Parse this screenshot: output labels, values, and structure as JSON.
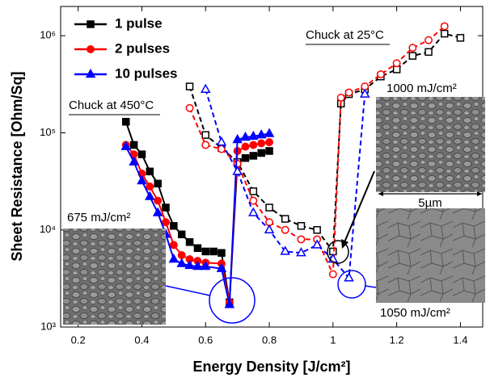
{
  "chart_data": {
    "type": "line",
    "x_label": "Energy Density [J/cm²]",
    "y_label": "Sheet Resistance [Ohm/Sq]",
    "log_y": true,
    "xlim": [
      0.145,
      1.47
    ],
    "ylim": [
      1000,
      2000000
    ],
    "xticks": [
      0.2,
      0.4,
      0.6,
      0.8,
      1.0,
      1.2,
      1.4
    ],
    "yticks": [
      {
        "value": 1000,
        "label": "10³"
      },
      {
        "value": 10000,
        "label": "10⁴"
      },
      {
        "value": 100000,
        "label": "10⁵"
      },
      {
        "value": 1000000,
        "label": "10⁶"
      }
    ],
    "legend": "top-left",
    "annotations": [
      "Chuck at 450°C",
      "Chuck at 25°C",
      "675 mJ/cm²",
      "1000 mJ/cm²",
      "1050 mJ/cm²",
      "5µm"
    ],
    "series": [
      {
        "name": "1 pulse",
        "color": "#000000",
        "marker": "square",
        "segments": [
          {
            "filled": true,
            "x": [
              0.35,
              0.375,
              0.4,
              0.425,
              0.45,
              0.475,
              0.5,
              0.525,
              0.55,
              0.575,
              0.6,
              0.625,
              0.65,
              0.675,
              0.7,
              0.725,
              0.75,
              0.775,
              0.8
            ],
            "values": [
              130000,
              75000,
              60000,
              40000,
              30000,
              17000,
              11000,
              9000,
              7500,
              6500,
              6000,
              6000,
              5800,
              1800,
              50000,
              55000,
              58000,
              62000,
              65000
            ]
          },
          {
            "filled": false,
            "x": [
              0.55,
              0.6,
              0.65,
              0.7,
              0.75,
              0.8,
              0.85,
              0.9,
              0.95,
              1.0,
              1.025,
              1.05,
              1.1,
              1.15,
              1.2,
              1.25,
              1.3,
              1.35,
              1.4
            ],
            "values": [
              300000,
              95000,
              70000,
              50000,
              25000,
              17000,
              13000,
              11000,
              10000,
              6000,
              200000,
              250000,
              280000,
              380000,
              450000,
              620000,
              680000,
              1050000,
              950000
            ]
          }
        ]
      },
      {
        "name": "2 pulses",
        "color": "#ff0000",
        "marker": "circle",
        "segments": [
          {
            "filled": true,
            "x": [
              0.35,
              0.375,
              0.4,
              0.425,
              0.45,
              0.475,
              0.5,
              0.525,
              0.55,
              0.575,
              0.6,
              0.65,
              0.675,
              0.7,
              0.725,
              0.75,
              0.775,
              0.8
            ],
            "values": [
              75000,
              60000,
              38000,
              28000,
              20000,
              12000,
              7000,
              5500,
              5000,
              4800,
              4600,
              4500,
              1800,
              65000,
              72000,
              75000,
              78000,
              80000
            ]
          },
          {
            "filled": false,
            "x": [
              0.55,
              0.6,
              0.65,
              0.7,
              0.75,
              0.8,
              0.85,
              0.9,
              0.95,
              1.0,
              1.025,
              1.05,
              1.1,
              1.15,
              1.2,
              1.25,
              1.3,
              1.35
            ],
            "values": [
              180000,
              75000,
              68000,
              48000,
              20000,
              12000,
              10000,
              8000,
              8000,
              3500,
              230000,
              260000,
              300000,
              400000,
              520000,
              750000,
              900000,
              1250000
            ]
          }
        ]
      },
      {
        "name": "10 pulses",
        "color": "#0000ff",
        "marker": "triangle",
        "segments": [
          {
            "filled": true,
            "x": [
              0.35,
              0.375,
              0.4,
              0.425,
              0.45,
              0.475,
              0.5,
              0.525,
              0.55,
              0.575,
              0.6,
              0.65,
              0.675,
              0.7,
              0.725,
              0.75,
              0.775,
              0.8
            ],
            "values": [
              72000,
              50000,
              32000,
              22000,
              15000,
              9000,
              5000,
              4500,
              4300,
              4200,
              4200,
              4000,
              1700,
              85000,
              90000,
              92000,
              95000,
              98000
            ]
          },
          {
            "filled": false,
            "x": [
              0.6,
              0.65,
              0.7,
              0.75,
              0.8,
              0.85,
              0.9,
              0.95,
              1.0,
              1.05,
              1.1
            ],
            "values": [
              280000,
              80000,
              40000,
              15000,
              10000,
              6000,
              5800,
              7000,
              5000,
              3200,
              250000
            ]
          }
        ]
      }
    ]
  }
}
